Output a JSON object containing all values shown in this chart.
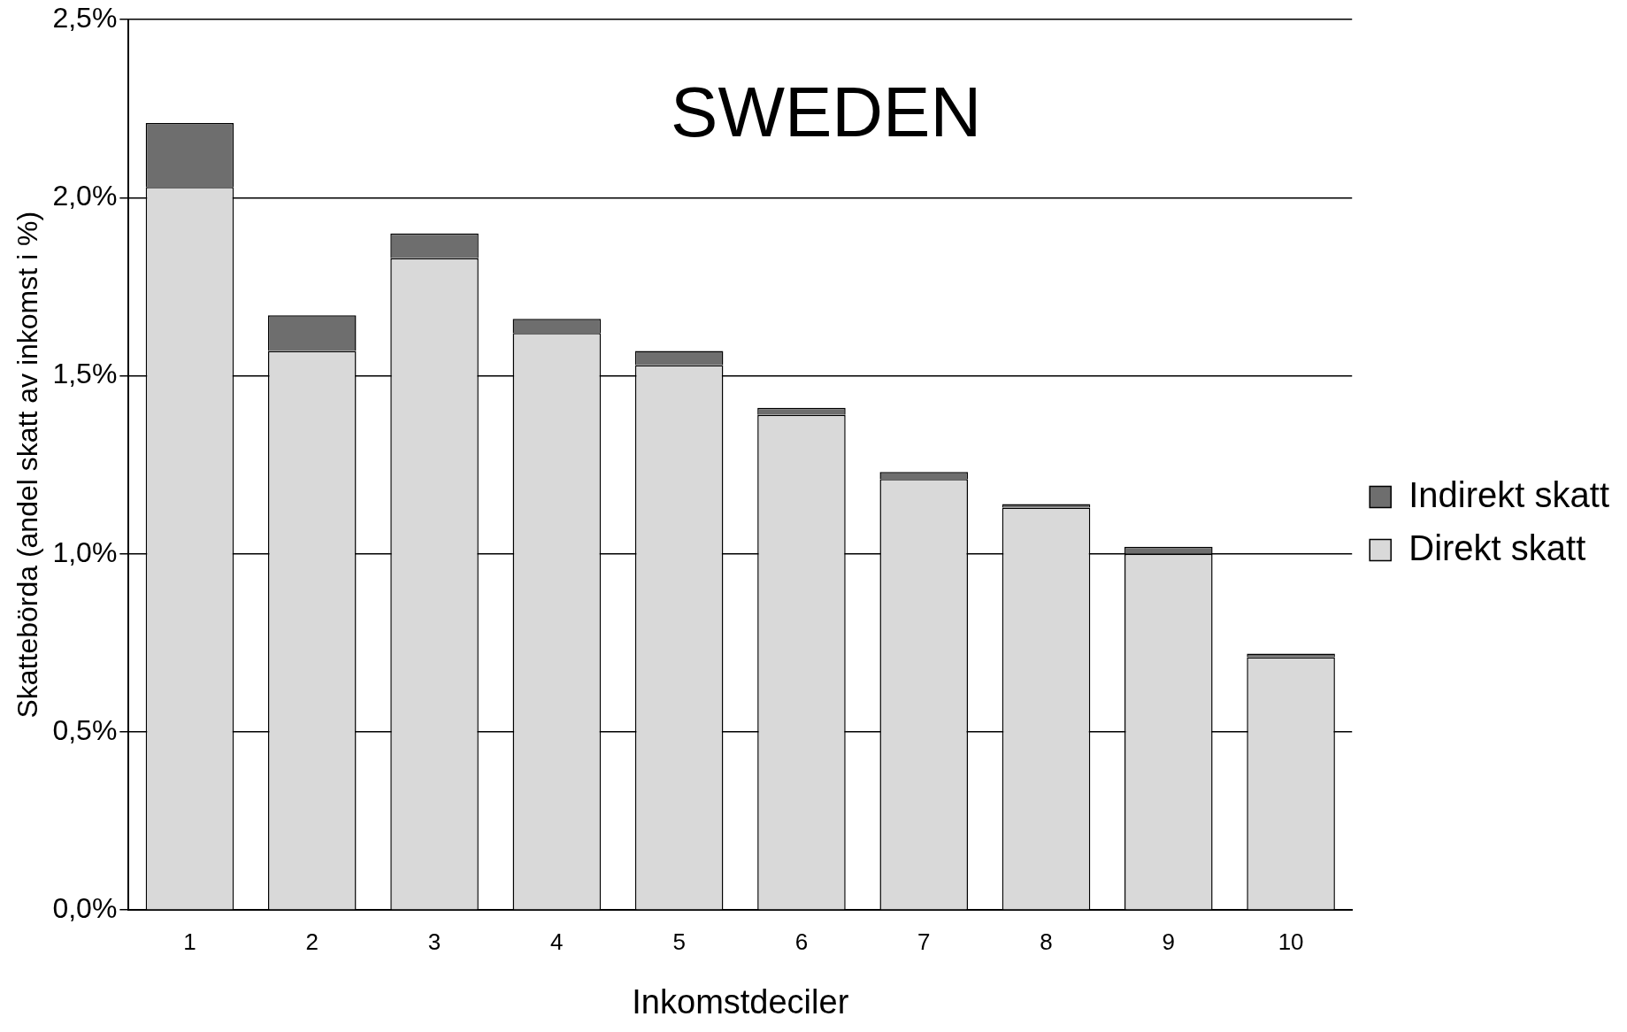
{
  "chart_data": {
    "type": "bar",
    "title": "SWEDEN",
    "xlabel": "Inkomstdeciler",
    "ylabel": "Skattebörda (andel skatt av inkomst i %)",
    "categories": [
      "1",
      "2",
      "3",
      "4",
      "5",
      "6",
      "7",
      "8",
      "9",
      "10"
    ],
    "stacked": true,
    "series": [
      {
        "name": "Direkt skatt",
        "color": "#d9d9d9",
        "values": [
          2.03,
          1.57,
          1.83,
          1.62,
          1.53,
          1.39,
          1.21,
          1.13,
          1.0,
          0.71
        ]
      },
      {
        "name": "Indirekt skatt",
        "color": "#6e6e6e",
        "values": [
          0.18,
          0.1,
          0.07,
          0.04,
          0.04,
          0.02,
          0.02,
          0.01,
          0.02,
          0.01
        ]
      }
    ],
    "ylim": [
      0,
      2.5
    ],
    "yticks": [
      {
        "value": 0,
        "label": "0,0%"
      },
      {
        "value": 0.5,
        "label": "0,5%"
      },
      {
        "value": 1,
        "label": "1,0%"
      },
      {
        "value": 1.5,
        "label": "1,5%"
      },
      {
        "value": 2,
        "label": "2,0%"
      },
      {
        "value": 2.5,
        "label": "2,5%"
      }
    ],
    "grid": "y",
    "legend": "right"
  }
}
